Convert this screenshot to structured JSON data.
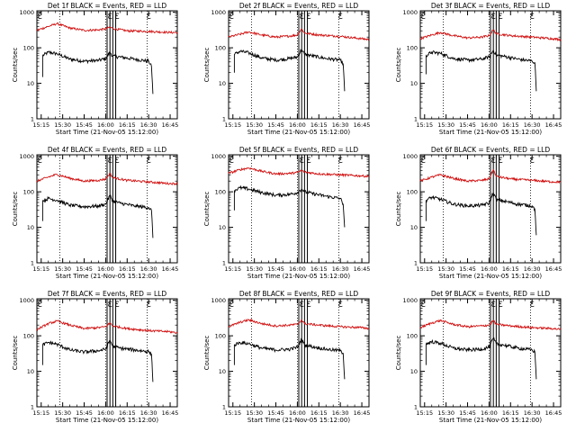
{
  "colors": {
    "events": "#000000",
    "lld": "#d01010",
    "axis": "#000000",
    "background": "#ffffff"
  },
  "common": {
    "ylabel": "Counts/sec",
    "xlabel": "Start Time (21-Nov-05 15:12:00)",
    "xticks": [
      "15:15",
      "15:30",
      "15:45",
      "16:00",
      "16:15",
      "16:30",
      "16:45"
    ],
    "yticks": [
      "1",
      "10",
      "100",
      "1000"
    ]
  },
  "chart_data": [
    {
      "type": "line",
      "title": "Det 1f  BLACK = Events, RED = LLD",
      "xlabel": "Start Time (21-Nov-05 15:12:00)",
      "ylabel": "Counts/sec",
      "ylog": true,
      "ylim": [
        1,
        1100
      ],
      "xlim": [
        "15:12",
        "16:50"
      ],
      "vlines_dotted": [
        "15:28",
        "16:00",
        "16:29"
      ],
      "boxed_intervals": [
        [
          "16:01",
          "16:03"
        ],
        [
          "16:05",
          "16:07"
        ]
      ],
      "markers": [
        "15:13",
        "16:02",
        "16:07",
        "16:29"
      ],
      "series": [
        {
          "name": "BLACK = Events",
          "x": [
            "15:16",
            "15:16",
            "15:20",
            "15:26",
            "15:35",
            "15:45",
            "15:55",
            "16:00",
            "16:03",
            "16:05",
            "16:10",
            "16:20",
            "16:30",
            "16:32",
            "16:33"
          ],
          "y": [
            15,
            60,
            75,
            68,
            48,
            42,
            44,
            50,
            75,
            58,
            55,
            48,
            42,
            30,
            5
          ]
        },
        {
          "name": "RED = LLD",
          "x": [
            "15:12",
            "15:20",
            "15:26",
            "15:35",
            "15:45",
            "15:55",
            "16:00",
            "16:03",
            "16:05",
            "16:15",
            "16:30",
            "16:45",
            "16:50"
          ],
          "y": [
            310,
            400,
            480,
            360,
            310,
            320,
            340,
            380,
            350,
            300,
            290,
            270,
            270
          ]
        }
      ]
    },
    {
      "type": "line",
      "title": "Det 2f  BLACK = Events, RED = LLD",
      "xlabel": "Start Time (21-Nov-05 15:12:00)",
      "ylabel": "Counts/sec",
      "ylog": true,
      "ylim": [
        1,
        1100
      ],
      "xlim": [
        "15:12",
        "16:50"
      ],
      "vlines_dotted": [
        "15:28",
        "16:00",
        "16:29"
      ],
      "boxed_intervals": [
        [
          "16:01",
          "16:03"
        ],
        [
          "16:05",
          "16:07"
        ]
      ],
      "markers": [
        "15:13",
        "16:02",
        "16:07",
        "16:29"
      ],
      "series": [
        {
          "name": "BLACK = Events",
          "x": [
            "15:16",
            "15:16",
            "15:20",
            "15:26",
            "15:35",
            "15:45",
            "15:55",
            "16:00",
            "16:03",
            "16:05",
            "16:10",
            "16:20",
            "16:30",
            "16:32",
            "16:33"
          ],
          "y": [
            20,
            65,
            80,
            72,
            52,
            45,
            50,
            55,
            90,
            65,
            60,
            50,
            45,
            35,
            6
          ]
        },
        {
          "name": "RED = LLD",
          "x": [
            "15:12",
            "15:20",
            "15:26",
            "15:35",
            "15:45",
            "15:55",
            "16:00",
            "16:03",
            "16:05",
            "16:15",
            "16:30",
            "16:45",
            "16:50"
          ],
          "y": [
            200,
            240,
            280,
            230,
            200,
            215,
            230,
            340,
            260,
            230,
            210,
            180,
            170
          ]
        }
      ]
    },
    {
      "type": "line",
      "title": "Det 3f  BLACK = Events, RED = LLD",
      "xlabel": "Start Time (21-Nov-05 15:12:00)",
      "ylabel": "Counts/sec",
      "ylog": true,
      "ylim": [
        1,
        1100
      ],
      "xlim": [
        "15:12",
        "16:50"
      ],
      "vlines_dotted": [
        "15:28",
        "16:00",
        "16:29"
      ],
      "boxed_intervals": [
        [
          "16:01",
          "16:03"
        ],
        [
          "16:05",
          "16:07"
        ]
      ],
      "markers": [
        "15:13",
        "16:02",
        "16:07",
        "16:29"
      ],
      "series": [
        {
          "name": "BLACK = Events",
          "x": [
            "15:16",
            "15:16",
            "15:20",
            "15:26",
            "15:35",
            "15:45",
            "15:55",
            "16:00",
            "16:03",
            "16:05",
            "16:10",
            "16:20",
            "16:30",
            "16:32",
            "16:33"
          ],
          "y": [
            18,
            60,
            75,
            70,
            50,
            45,
            48,
            55,
            85,
            62,
            58,
            48,
            42,
            38,
            6
          ]
        },
        {
          "name": "RED = LLD",
          "x": [
            "15:12",
            "15:20",
            "15:26",
            "15:35",
            "15:45",
            "15:55",
            "16:00",
            "16:03",
            "16:05",
            "16:15",
            "16:30",
            "16:45",
            "16:50"
          ],
          "y": [
            180,
            230,
            270,
            220,
            190,
            200,
            220,
            320,
            250,
            220,
            200,
            180,
            170
          ]
        }
      ]
    },
    {
      "type": "line",
      "title": "Det 4f  BLACK = Events, RED = LLD",
      "xlabel": "Start Time (21-Nov-05 15:12:00)",
      "ylabel": "Counts/sec",
      "ylog": true,
      "ylim": [
        1,
        1100
      ],
      "xlim": [
        "15:12",
        "16:50"
      ],
      "vlines_dotted": [
        "15:28",
        "16:00",
        "16:29"
      ],
      "boxed_intervals": [
        [
          "16:01",
          "16:03"
        ],
        [
          "16:05",
          "16:07"
        ]
      ],
      "markers": [
        "15:13",
        "16:02",
        "16:07",
        "16:29"
      ],
      "series": [
        {
          "name": "BLACK = Events",
          "x": [
            "15:16",
            "15:16",
            "15:20",
            "15:26",
            "15:35",
            "15:45",
            "15:55",
            "16:00",
            "16:03",
            "16:05",
            "16:10",
            "16:20",
            "16:30",
            "16:32",
            "16:33"
          ],
          "y": [
            15,
            55,
            65,
            58,
            42,
            38,
            40,
            45,
            80,
            55,
            48,
            40,
            36,
            30,
            5
          ]
        },
        {
          "name": "RED = LLD",
          "x": [
            "15:12",
            "15:20",
            "15:26",
            "15:35",
            "15:45",
            "15:55",
            "16:00",
            "16:03",
            "16:05",
            "16:15",
            "16:30",
            "16:45",
            "16:50"
          ],
          "y": [
            200,
            260,
            310,
            240,
            200,
            210,
            230,
            330,
            250,
            210,
            190,
            170,
            170
          ]
        }
      ]
    },
    {
      "type": "line",
      "title": "Det 5f  BLACK = Events, RED = LLD",
      "xlabel": "Start Time (21-Nov-05 15:12:00)",
      "ylabel": "Counts/sec",
      "ylog": true,
      "ylim": [
        1,
        1100
      ],
      "xlim": [
        "15:12",
        "16:50"
      ],
      "vlines_dotted": [
        "15:28",
        "16:00",
        "16:29"
      ],
      "boxed_intervals": [
        [
          "16:01",
          "16:03"
        ],
        [
          "16:05",
          "16:07"
        ]
      ],
      "markers": [
        "15:13",
        "16:02",
        "16:07",
        "16:29"
      ],
      "series": [
        {
          "name": "BLACK = Events",
          "x": [
            "15:16",
            "15:16",
            "15:20",
            "15:26",
            "15:35",
            "15:45",
            "15:55",
            "16:00",
            "16:03",
            "16:05",
            "16:10",
            "16:20",
            "16:30",
            "16:32",
            "16:33"
          ],
          "y": [
            30,
            110,
            130,
            120,
            95,
            80,
            85,
            95,
            120,
            100,
            90,
            75,
            65,
            45,
            10
          ]
        },
        {
          "name": "RED = LLD",
          "x": [
            "15:12",
            "15:20",
            "15:26",
            "15:35",
            "15:45",
            "15:55",
            "16:00",
            "16:03",
            "16:05",
            "16:15",
            "16:30",
            "16:45",
            "16:50"
          ],
          "y": [
            330,
            420,
            470,
            380,
            320,
            330,
            350,
            400,
            360,
            320,
            300,
            280,
            270
          ]
        }
      ]
    },
    {
      "type": "line",
      "title": "Det 6f  BLACK = Events, RED = LLD",
      "xlabel": "Start Time (21-Nov-05 15:12:00)",
      "ylabel": "Counts/sec",
      "ylog": true,
      "ylim": [
        1,
        1100
      ],
      "xlim": [
        "15:12",
        "16:50"
      ],
      "vlines_dotted": [
        "15:28",
        "16:00",
        "16:29"
      ],
      "boxed_intervals": [
        [
          "16:01",
          "16:03"
        ],
        [
          "16:05",
          "16:07"
        ]
      ],
      "markers": [
        "15:13",
        "16:02",
        "16:07",
        "16:29"
      ],
      "series": [
        {
          "name": "BLACK = Events",
          "x": [
            "15:16",
            "15:16",
            "15:20",
            "15:26",
            "15:35",
            "15:45",
            "15:55",
            "16:00",
            "16:03",
            "16:05",
            "16:10",
            "16:20",
            "16:30",
            "16:32",
            "16:33"
          ],
          "y": [
            15,
            58,
            70,
            62,
            45,
            40,
            42,
            48,
            95,
            60,
            55,
            45,
            40,
            32,
            6
          ]
        },
        {
          "name": "RED = LLD",
          "x": [
            "15:12",
            "15:20",
            "15:26",
            "15:35",
            "15:45",
            "15:55",
            "16:00",
            "16:03",
            "16:05",
            "16:15",
            "16:30",
            "16:45",
            "16:50"
          ],
          "y": [
            200,
            260,
            300,
            240,
            200,
            210,
            230,
            420,
            270,
            230,
            210,
            190,
            190
          ]
        }
      ]
    },
    {
      "type": "line",
      "title": "Det 7f  BLACK = Events, RED = LLD",
      "xlabel": "Start Time (21-Nov-05 15:12:00)",
      "ylabel": "Counts/sec",
      "ylog": true,
      "ylim": [
        1,
        1100
      ],
      "xlim": [
        "15:12",
        "16:50"
      ],
      "vlines_dotted": [
        "15:28",
        "16:00",
        "16:29"
      ],
      "boxed_intervals": [
        [
          "16:01",
          "16:03"
        ],
        [
          "16:05",
          "16:07"
        ]
      ],
      "markers": [
        "15:13",
        "16:02",
        "16:07",
        "16:29"
      ],
      "series": [
        {
          "name": "BLACK = Events",
          "x": [
            "15:16",
            "15:16",
            "15:20",
            "15:26",
            "15:35",
            "15:45",
            "15:55",
            "16:00",
            "16:03",
            "16:05",
            "16:10",
            "16:20",
            "16:30",
            "16:32",
            "16:33"
          ],
          "y": [
            15,
            55,
            65,
            58,
            40,
            35,
            38,
            42,
            75,
            50,
            45,
            40,
            36,
            30,
            5
          ]
        },
        {
          "name": "RED = LLD",
          "x": [
            "15:12",
            "15:20",
            "15:26",
            "15:35",
            "15:45",
            "15:55",
            "16:00",
            "16:03",
            "16:05",
            "16:15",
            "16:30",
            "16:45",
            "16:50"
          ],
          "y": [
            150,
            220,
            260,
            200,
            160,
            170,
            180,
            230,
            190,
            160,
            140,
            130,
            120
          ]
        }
      ]
    },
    {
      "type": "line",
      "title": "Det 8f  BLACK = Events, RED = LLD",
      "xlabel": "Start Time (21-Nov-05 15:12:00)",
      "ylabel": "Counts/sec",
      "ylog": true,
      "ylim": [
        1,
        1100
      ],
      "xlim": [
        "15:12",
        "16:50"
      ],
      "vlines_dotted": [
        "15:28",
        "16:00",
        "16:29"
      ],
      "boxed_intervals": [
        [
          "16:01",
          "16:03"
        ],
        [
          "16:05",
          "16:07"
        ]
      ],
      "markers": [
        "15:13",
        "16:02",
        "16:07",
        "16:29"
      ],
      "series": [
        {
          "name": "BLACK = Events",
          "x": [
            "15:16",
            "15:16",
            "15:20",
            "15:26",
            "15:35",
            "15:45",
            "15:55",
            "16:00",
            "16:03",
            "16:05",
            "16:10",
            "16:20",
            "16:30",
            "16:32",
            "16:33"
          ],
          "y": [
            15,
            55,
            65,
            60,
            45,
            40,
            42,
            48,
            80,
            55,
            50,
            42,
            38,
            32,
            6
          ]
        },
        {
          "name": "RED = LLD",
          "x": [
            "15:12",
            "15:20",
            "15:26",
            "15:35",
            "15:45",
            "15:55",
            "16:00",
            "16:03",
            "16:05",
            "16:15",
            "16:30",
            "16:45",
            "16:50"
          ],
          "y": [
            180,
            240,
            280,
            220,
            190,
            200,
            210,
            280,
            220,
            200,
            180,
            170,
            160
          ]
        }
      ]
    },
    {
      "type": "line",
      "title": "Det 9f  BLACK = Events, RED = LLD",
      "xlabel": "Start Time (21-Nov-05 15:12:00)",
      "ylabel": "Counts/sec",
      "ylog": true,
      "ylim": [
        1,
        1100
      ],
      "xlim": [
        "15:12",
        "16:50"
      ],
      "vlines_dotted": [
        "15:28",
        "16:00",
        "16:29"
      ],
      "boxed_intervals": [
        [
          "16:01",
          "16:03"
        ],
        [
          "16:05",
          "16:07"
        ]
      ],
      "markers": [
        "15:13",
        "16:02",
        "16:07",
        "16:29"
      ],
      "series": [
        {
          "name": "BLACK = Events",
          "x": [
            "15:16",
            "15:16",
            "15:20",
            "15:26",
            "15:35",
            "15:45",
            "15:55",
            "16:00",
            "16:03",
            "16:05",
            "16:10",
            "16:20",
            "16:30",
            "16:32",
            "16:33"
          ],
          "y": [
            15,
            58,
            68,
            62,
            45,
            40,
            42,
            48,
            85,
            60,
            55,
            45,
            40,
            35,
            6
          ]
        },
        {
          "name": "RED = LLD",
          "x": [
            "15:12",
            "15:20",
            "15:26",
            "15:35",
            "15:45",
            "15:55",
            "16:00",
            "16:03",
            "16:05",
            "16:15",
            "16:30",
            "16:45",
            "16:50"
          ],
          "y": [
            170,
            230,
            270,
            210,
            180,
            190,
            200,
            270,
            210,
            190,
            170,
            160,
            150
          ]
        }
      ]
    }
  ]
}
